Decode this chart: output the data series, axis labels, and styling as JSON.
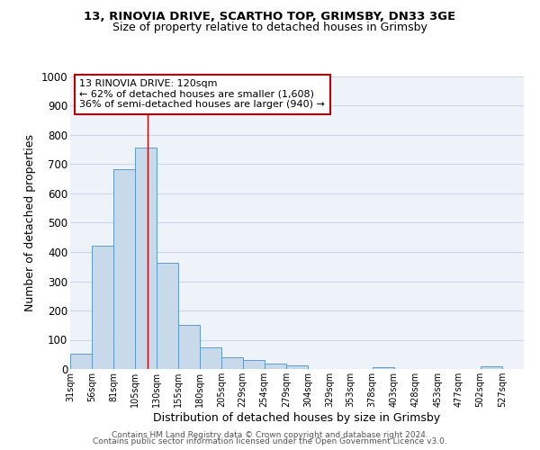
{
  "title1": "13, RINOVIA DRIVE, SCARTHO TOP, GRIMSBY, DN33 3GE",
  "title2": "Size of property relative to detached houses in Grimsby",
  "xlabel": "Distribution of detached houses by size in Grimsby",
  "ylabel": "Number of detached properties",
  "bar_left_edges": [
    31,
    56,
    81,
    105,
    130,
    155,
    180,
    205,
    229,
    254,
    279,
    304,
    329,
    353,
    378,
    403,
    428,
    453,
    477,
    502
  ],
  "bar_heights": [
    52,
    422,
    683,
    757,
    362,
    152,
    75,
    40,
    32,
    17,
    11,
    0,
    0,
    0,
    5,
    0,
    0,
    0,
    0,
    8
  ],
  "bar_widths": [
    25,
    25,
    25,
    25,
    25,
    25,
    25,
    24,
    25,
    25,
    25,
    25,
    24,
    25,
    25,
    25,
    25,
    24,
    25,
    25
  ],
  "tick_labels": [
    "31sqm",
    "56sqm",
    "81sqm",
    "105sqm",
    "130sqm",
    "155sqm",
    "180sqm",
    "205sqm",
    "229sqm",
    "254sqm",
    "279sqm",
    "304sqm",
    "329sqm",
    "353sqm",
    "378sqm",
    "403sqm",
    "428sqm",
    "453sqm",
    "477sqm",
    "502sqm",
    "527sqm"
  ],
  "tick_positions": [
    31,
    56,
    81,
    105,
    130,
    155,
    180,
    205,
    229,
    254,
    279,
    304,
    329,
    353,
    378,
    403,
    428,
    453,
    477,
    502,
    527
  ],
  "bar_color": "#c8daea",
  "bar_edge_color": "#5b9bd5",
  "grid_color": "#c8d8ea",
  "background_color": "#eef3f9",
  "property_line_x": 120,
  "property_line_color": "#c00000",
  "annotation_line1": "13 RINOVIA DRIVE: 120sqm",
  "annotation_line2": "← 62% of detached houses are smaller (1,608)",
  "annotation_line3": "36% of semi-detached houses are larger (940) →",
  "annotation_box_color": "#ffffff",
  "annotation_box_edge_color": "#c00000",
  "ylim": [
    0,
    1000
  ],
  "xlim": [
    31,
    552
  ],
  "footer1": "Contains HM Land Registry data © Crown copyright and database right 2024.",
  "footer2": "Contains public sector information licensed under the Open Government Licence v3.0."
}
